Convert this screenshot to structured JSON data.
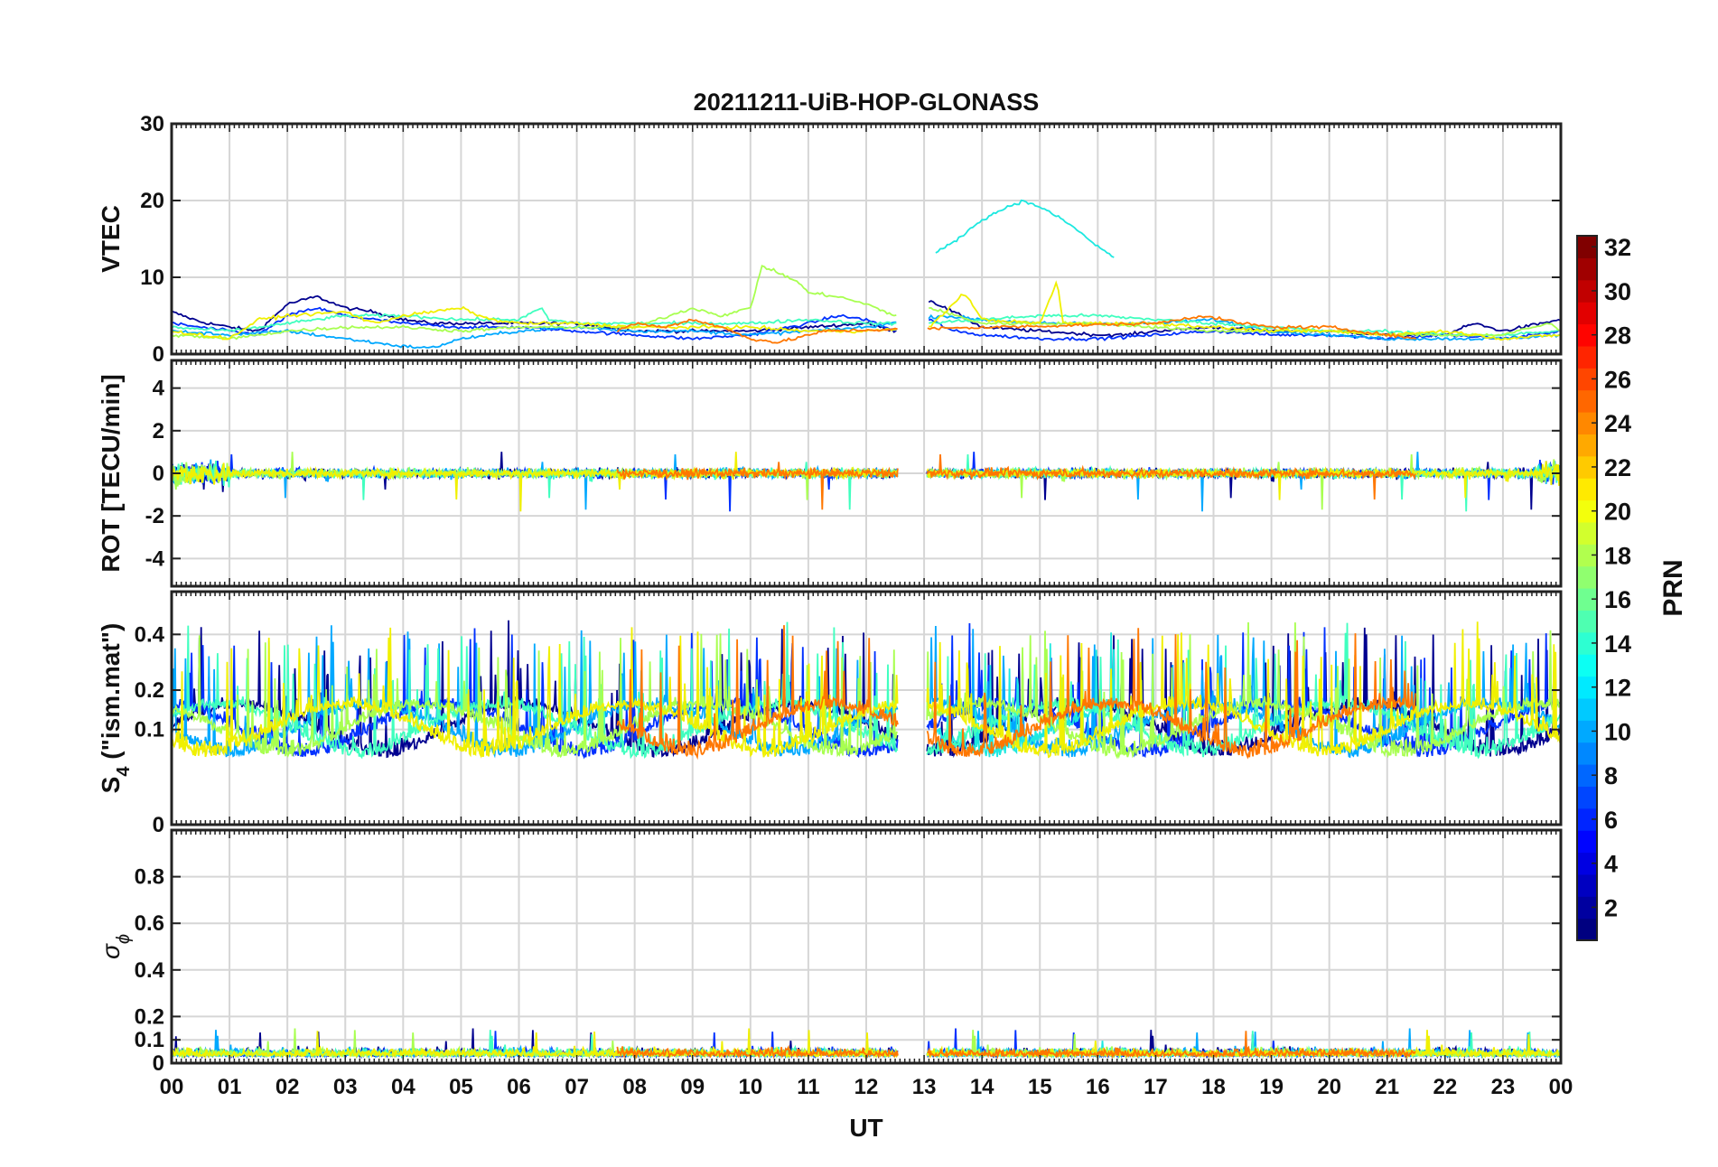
{
  "chart_data": {
    "type": "line",
    "title": "20211211-UiB-HOP-GLONASS",
    "xlabel": "UT",
    "x_tick_labels": [
      "00",
      "01",
      "02",
      "03",
      "04",
      "05",
      "06",
      "07",
      "08",
      "09",
      "10",
      "11",
      "12",
      "13",
      "14",
      "15",
      "16",
      "17",
      "18",
      "19",
      "20",
      "21",
      "22",
      "23",
      "00"
    ],
    "xlim": [
      0,
      24
    ],
    "grid": true,
    "panels": [
      {
        "name": "vtec",
        "ylabel": "VTEC",
        "ylim": [
          0,
          30
        ],
        "yticks": [
          0,
          10,
          20,
          30
        ],
        "ytick_labels": [
          "0",
          "10",
          "20",
          "30"
        ],
        "annotations": [
          "Prominent arc 13.2–16.3 UT peaking near 20 TECU at ~14.7 UT; background values 1–8 TECU"
        ]
      },
      {
        "name": "rot",
        "ylabel": "ROT [TECU/min]",
        "ylim": [
          -5.3,
          5.3
        ],
        "yticks": [
          -4,
          -2,
          0,
          2,
          4
        ],
        "ytick_labels": [
          "-4",
          "-2",
          "0",
          "2",
          "4"
        ]
      },
      {
        "name": "s4",
        "ylabel_main": "S",
        "ylabel_sub": "4",
        "ylabel_rest": " (\"ism.mat\")",
        "ylim": [
          0,
          0.6
        ],
        "yticks": [
          0,
          0.1,
          0.2,
          0.4
        ],
        "ytick_labels": [
          "0",
          "0.1",
          "0.2",
          "0.4"
        ],
        "scale": "square-root"
      },
      {
        "name": "sigma-phi",
        "ylabel_main": "σ",
        "ylabel_sub": "ϕ",
        "ylim": [
          0,
          1
        ],
        "yticks": [
          0,
          0.1,
          0.2,
          0.4,
          0.6,
          0.8
        ],
        "ytick_labels": [
          "0",
          "0.1",
          "0.2",
          "0.4",
          "0.6",
          "0.8"
        ]
      }
    ],
    "data_gap_ut": [
      12.55,
      13.05
    ],
    "colorbar": {
      "label": "PRN",
      "range": [
        1,
        32
      ],
      "ticks": [
        2,
        4,
        6,
        8,
        10,
        12,
        14,
        16,
        18,
        20,
        22,
        24,
        26,
        28,
        30,
        32
      ],
      "tick_labels": [
        "2",
        "4",
        "6",
        "8",
        "10",
        "12",
        "14",
        "16",
        "18",
        "20",
        "22",
        "24",
        "26",
        "28",
        "30",
        "32"
      ],
      "colormap": "jet"
    },
    "series": [
      {
        "prn": 2,
        "color": "#00008f",
        "vtec": [
          [
            0,
            5.5
          ],
          [
            0.5,
            4.2
          ],
          [
            1,
            3.5
          ],
          [
            1.5,
            3
          ],
          [
            2,
            6.5
          ],
          [
            2.5,
            7.5
          ],
          [
            3,
            6
          ],
          [
            3.5,
            5.5
          ],
          [
            4,
            4.5
          ],
          [
            4.5,
            4
          ],
          [
            5,
            4
          ],
          [
            6,
            4
          ],
          [
            7,
            4
          ],
          [
            8,
            3
          ],
          [
            9,
            3
          ],
          [
            10,
            3
          ],
          [
            11,
            3.5
          ],
          [
            12,
            4
          ],
          [
            12.5,
            3
          ],
          [
            13.1,
            7
          ],
          [
            13.5,
            5.5
          ],
          [
            14,
            3.5
          ],
          [
            15,
            3
          ],
          [
            16,
            2.5
          ],
          [
            16.5,
            2.5
          ],
          [
            17,
            3
          ],
          [
            18,
            3.5
          ],
          [
            19,
            3
          ],
          [
            20,
            3
          ],
          [
            21,
            2.5
          ],
          [
            22,
            2.5
          ],
          [
            22.5,
            4
          ],
          [
            23,
            3
          ],
          [
            24,
            4.5
          ]
        ]
      },
      {
        "prn": 5,
        "color": "#0030ff",
        "vtec": [
          [
            0,
            4
          ],
          [
            0.5,
            3.5
          ],
          [
            1,
            3
          ],
          [
            1.5,
            2.5
          ],
          [
            2,
            5
          ],
          [
            2.5,
            6
          ],
          [
            3,
            5
          ],
          [
            4,
            4
          ],
          [
            5,
            3.5
          ],
          [
            6,
            3.5
          ],
          [
            7,
            3
          ],
          [
            8,
            2.5
          ],
          [
            9,
            2
          ],
          [
            10,
            2.5
          ],
          [
            11,
            4
          ],
          [
            11.5,
            5
          ],
          [
            12,
            4.5
          ],
          [
            12.5,
            3
          ],
          [
            13.1,
            4.5
          ],
          [
            13.5,
            3
          ],
          [
            14,
            2.5
          ],
          [
            15,
            2
          ],
          [
            16,
            2
          ],
          [
            17,
            2.5
          ],
          [
            18,
            3
          ],
          [
            19,
            2.5
          ],
          [
            20,
            2.5
          ],
          [
            21,
            2
          ],
          [
            22,
            2.5
          ],
          [
            23,
            2
          ],
          [
            24,
            3
          ]
        ]
      },
      {
        "prn": 11,
        "color": "#00a8ff",
        "vtec": [
          [
            0,
            3
          ],
          [
            1,
            2.5
          ],
          [
            2,
            3
          ],
          [
            2.5,
            2.5
          ],
          [
            3,
            2
          ],
          [
            3.5,
            1.5
          ],
          [
            4,
            1
          ],
          [
            4.5,
            0.8
          ],
          [
            5,
            2
          ],
          [
            6,
            3
          ],
          [
            7,
            3.5
          ],
          [
            8,
            3
          ],
          [
            9,
            3
          ],
          [
            10,
            2.5
          ],
          [
            11,
            3
          ],
          [
            12,
            3.5
          ],
          [
            13.3,
            5
          ],
          [
            14,
            4.5
          ],
          [
            15,
            4
          ],
          [
            16,
            4
          ],
          [
            17,
            4
          ],
          [
            18,
            4.5
          ],
          [
            19,
            3
          ],
          [
            20,
            2.5
          ],
          [
            21,
            2
          ],
          [
            22,
            2
          ],
          [
            23,
            2
          ],
          [
            24,
            2.5
          ]
        ]
      },
      {
        "prn": 13,
        "color": "#1de8e0",
        "vtec": [
          [
            13.2,
            13.2
          ],
          [
            13.5,
            14.5
          ],
          [
            14,
            17.5
          ],
          [
            14.5,
            19.4
          ],
          [
            14.7,
            19.9
          ],
          [
            15,
            19.2
          ],
          [
            15.5,
            17
          ],
          [
            16,
            14
          ],
          [
            16.3,
            12.5
          ]
        ]
      },
      {
        "prn": 14,
        "color": "#40ffbf",
        "vtec": [
          [
            0,
            3.5
          ],
          [
            1,
            3
          ],
          [
            2,
            4
          ],
          [
            3,
            5
          ],
          [
            4,
            5
          ],
          [
            5,
            4.5
          ],
          [
            6,
            4.5
          ],
          [
            6.4,
            6
          ],
          [
            6.5,
            4.5
          ],
          [
            7,
            4
          ],
          [
            8,
            4
          ],
          [
            9,
            4
          ],
          [
            10,
            4
          ],
          [
            11,
            4.5
          ],
          [
            12,
            4
          ],
          [
            13,
            4
          ],
          [
            14,
            4.5
          ],
          [
            15,
            5
          ],
          [
            16,
            5
          ],
          [
            17,
            4.5
          ],
          [
            18,
            4
          ],
          [
            19,
            3.5
          ],
          [
            20,
            3
          ],
          [
            21,
            3
          ],
          [
            22,
            2.5
          ],
          [
            23,
            2.5
          ],
          [
            24,
            3
          ]
        ]
      },
      {
        "prn": 17,
        "color": "#a8ff50",
        "vtec": [
          [
            0,
            2.5
          ],
          [
            1,
            2
          ],
          [
            2,
            3
          ],
          [
            3,
            3.5
          ],
          [
            4,
            3.5
          ],
          [
            5,
            3
          ],
          [
            6,
            3.5
          ],
          [
            7,
            3.5
          ],
          [
            8,
            3.5
          ],
          [
            9,
            6
          ],
          [
            9.5,
            5
          ],
          [
            10,
            6
          ],
          [
            10.2,
            11.5
          ],
          [
            10.8,
            9.5
          ],
          [
            11,
            8
          ],
          [
            11.5,
            7.5
          ],
          [
            12,
            6.5
          ],
          [
            12.5,
            5
          ],
          [
            13.1,
            6
          ],
          [
            14,
            4
          ],
          [
            15,
            4
          ],
          [
            16,
            4
          ],
          [
            17,
            3.5
          ],
          [
            18,
            3
          ],
          [
            19,
            3
          ],
          [
            20,
            3
          ],
          [
            21,
            2.5
          ],
          [
            22,
            2.5
          ],
          [
            23,
            2.5
          ],
          [
            23.8,
            4
          ],
          [
            24,
            3
          ]
        ]
      },
      {
        "prn": 20,
        "color": "#f0f000",
        "vtec": [
          [
            0,
            3
          ],
          [
            0.5,
            2.5
          ],
          [
            1,
            2
          ],
          [
            1.5,
            4.5
          ],
          [
            2,
            5
          ],
          [
            3,
            5.5
          ],
          [
            3.5,
            4
          ],
          [
            4,
            5
          ],
          [
            5,
            6
          ],
          [
            5.5,
            4.5
          ],
          [
            6,
            4
          ],
          [
            7,
            4
          ],
          [
            8,
            3.5
          ],
          [
            9,
            3.5
          ],
          [
            10,
            3.5
          ],
          [
            11,
            3
          ],
          [
            12,
            3
          ],
          [
            13.1,
            3.5
          ],
          [
            13.7,
            8
          ],
          [
            14,
            4.5
          ],
          [
            15,
            4
          ],
          [
            15.3,
            9.5
          ],
          [
            15.4,
            4
          ],
          [
            16,
            4
          ],
          [
            17,
            4
          ],
          [
            18,
            3.5
          ],
          [
            19,
            3
          ],
          [
            20,
            3
          ],
          [
            21,
            2.5
          ],
          [
            22,
            3
          ],
          [
            22.5,
            2.5
          ],
          [
            23,
            2
          ],
          [
            24,
            2.5
          ]
        ]
      },
      {
        "prn": 24,
        "color": "#ff7700",
        "vtec": [
          [
            7.7,
            3
          ],
          [
            8,
            4
          ],
          [
            8.5,
            3.5
          ],
          [
            9,
            4.5
          ],
          [
            9.5,
            3.5
          ],
          [
            10,
            2
          ],
          [
            10.5,
            1.5
          ],
          [
            11,
            2.5
          ],
          [
            11.3,
            3
          ],
          [
            17,
            4
          ],
          [
            17.8,
            5
          ],
          [
            18.5,
            4
          ],
          [
            19,
            3.5
          ],
          [
            20,
            3.5
          ],
          [
            20.5,
            3
          ],
          [
            21,
            2.5
          ],
          [
            21.5,
            2
          ]
        ]
      }
    ]
  }
}
